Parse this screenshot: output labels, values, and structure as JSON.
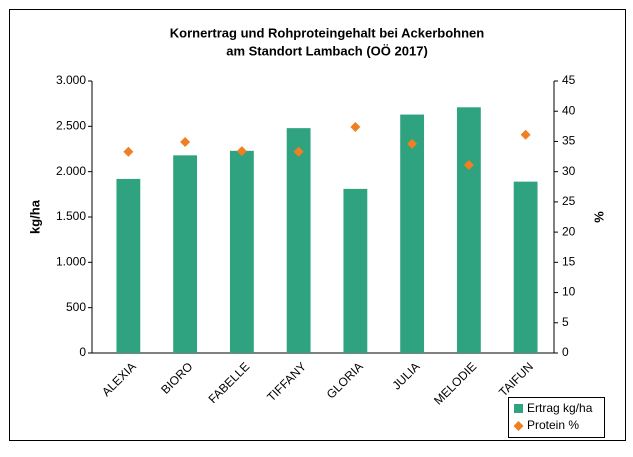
{
  "chart_data": {
    "type": "bar",
    "title": [
      "Kornertrag und Rohproteingehalt bei Ackerbohnen",
      "am Standort Lambach (OÖ 2017)"
    ],
    "categories": [
      "ALEXIA",
      "BIORO",
      "FABELLE",
      "TIFFANY",
      "GLORIA",
      "JULIA",
      "MELODIE",
      "TAIFUN"
    ],
    "series": [
      {
        "name": "Ertrag kg/ha",
        "type": "bar",
        "color": "#2fa37f",
        "values": [
          1920,
          2180,
          2230,
          2480,
          1810,
          2630,
          2710,
          1890
        ]
      },
      {
        "name": "Protein %",
        "type": "scatter",
        "axis": "y2",
        "color": "#f07f22",
        "values": [
          33.3,
          34.9,
          33.4,
          33.3,
          37.4,
          34.6,
          31.1,
          36.1
        ]
      }
    ],
    "ylabel": "kg/ha",
    "y2label": "%",
    "ylim": [
      0,
      3000
    ],
    "yticks": [
      0,
      500,
      {
        "value": 1000,
        "label": "1.000"
      },
      {
        "value": 1500,
        "label": "1.500"
      },
      {
        "value": 2000,
        "label": "2.000"
      },
      {
        "value": 2500,
        "label": "2.500"
      },
      {
        "value": 3000,
        "label": "3.000"
      }
    ],
    "y2lim": [
      0,
      45
    ],
    "y2ticks": [
      0,
      5,
      10,
      15,
      20,
      25,
      30,
      35,
      40,
      45
    ],
    "grid": false,
    "legend": "bottom-right"
  }
}
